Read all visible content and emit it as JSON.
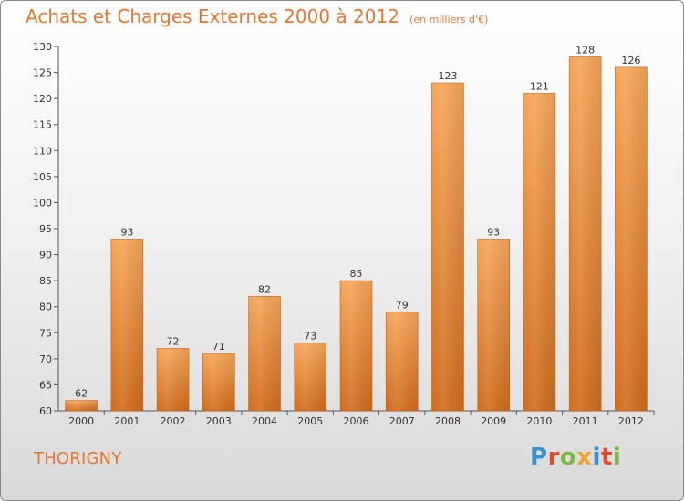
{
  "header": {
    "title": "Achats et Charges Externes 2000 à 2012",
    "subtitle": "(en milliers d'€)"
  },
  "commune": "THORIGNY",
  "logo": {
    "letters": [
      "P",
      "r",
      "o",
      "x",
      "i",
      "t",
      "i"
    ],
    "colors": [
      "#3a8fd1",
      "#e04a2f",
      "#7ab648",
      "#f2a12e",
      "#3a8fd1",
      "#e04a2f",
      "#7ab648"
    ]
  },
  "colors": {
    "accent": "#e2782f",
    "bar_top": "#f6a558",
    "bar_bottom": "#d06b1c"
  },
  "chart_data": {
    "type": "bar",
    "title": "Achats et Charges Externes 2000 à 2012",
    "subtitle": "(en milliers d'€)",
    "categories": [
      "2000",
      "2001",
      "2002",
      "2003",
      "2004",
      "2005",
      "2006",
      "2007",
      "2008",
      "2009",
      "2010",
      "2011",
      "2012"
    ],
    "values": [
      62,
      93,
      72,
      71,
      82,
      73,
      85,
      79,
      123,
      93,
      121,
      128,
      126
    ],
    "ylim": [
      60,
      130
    ],
    "yticks": [
      60,
      65,
      70,
      75,
      80,
      85,
      90,
      95,
      100,
      105,
      110,
      115,
      120,
      125,
      130
    ],
    "grid": false,
    "data_labels": true
  }
}
